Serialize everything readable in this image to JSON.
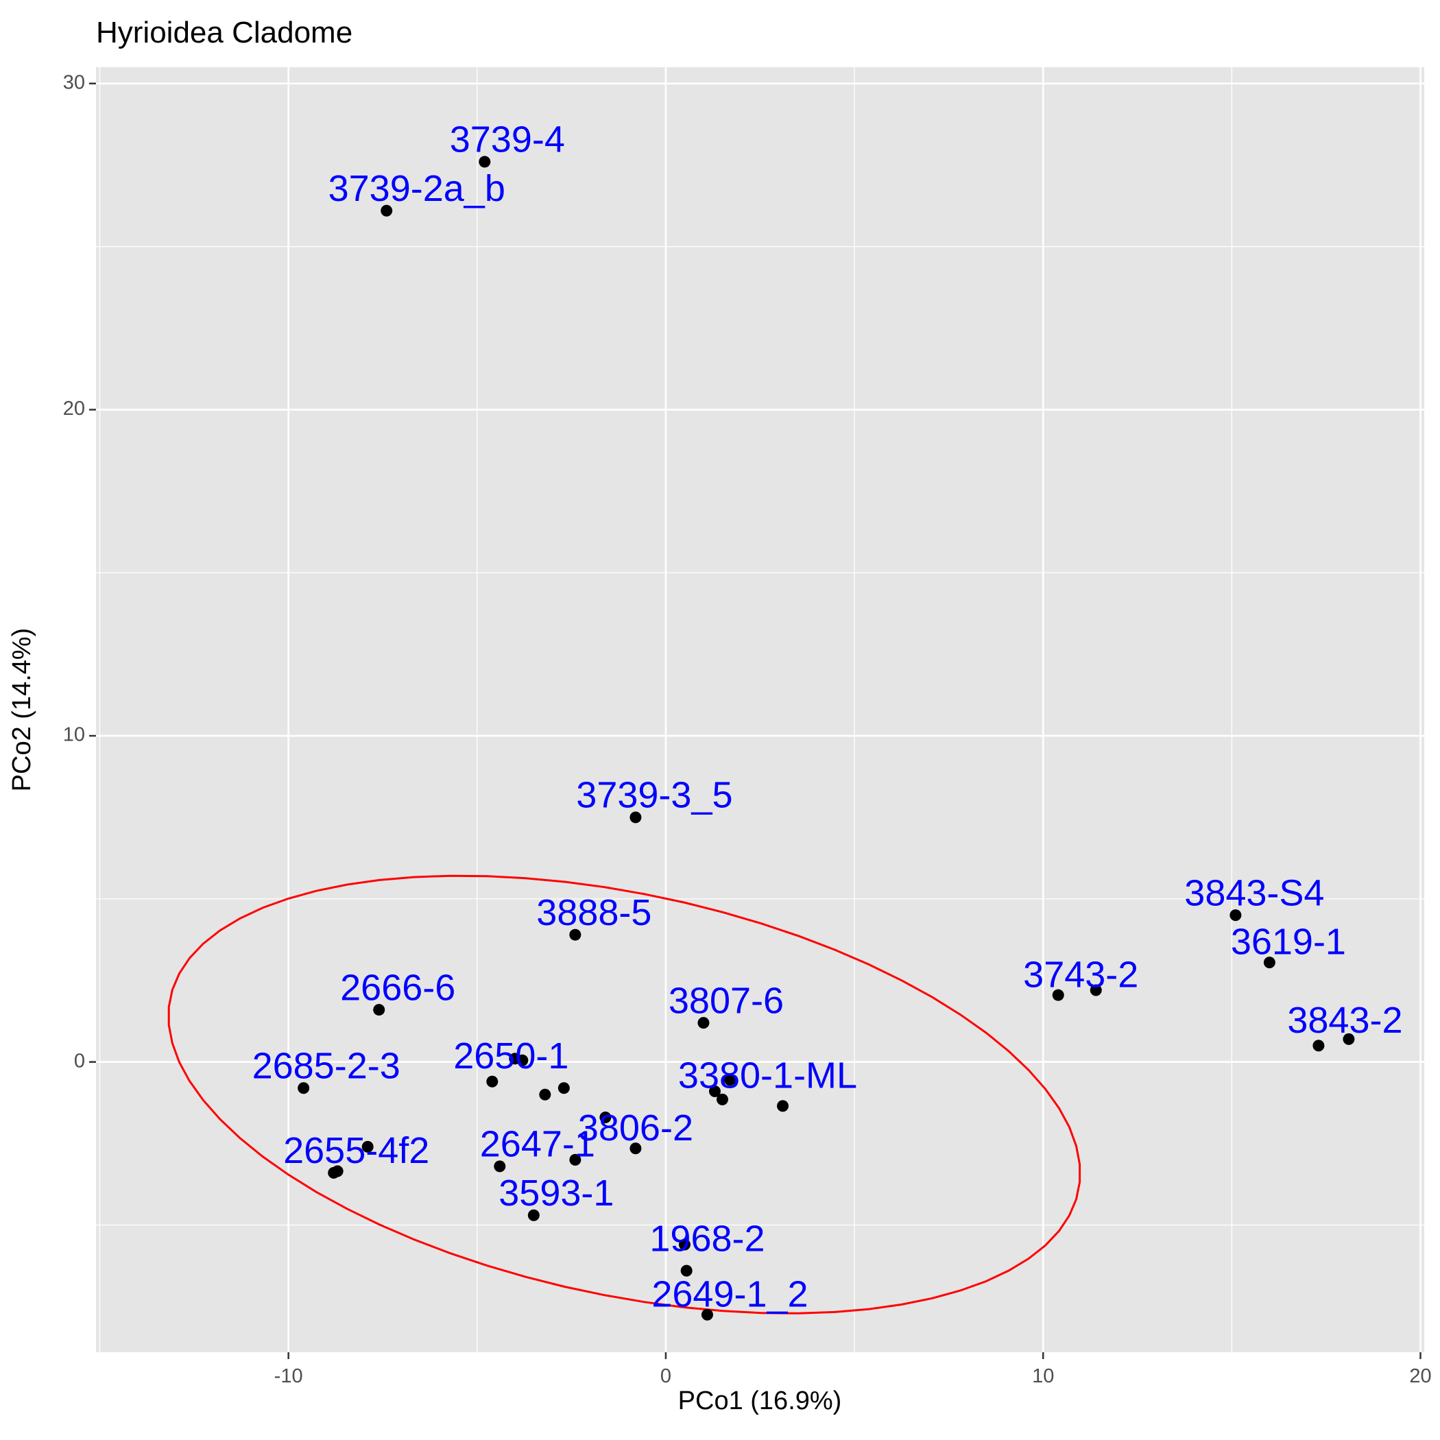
{
  "chart_data": {
    "type": "scatter",
    "title": "Hyrioidea Cladome",
    "xlabel": "PCo1 (16.9%)",
    "ylabel": "PCo2 (14.4%)",
    "xlim": [
      -15.1,
      20.1
    ],
    "ylim": [
      -8.9,
      30.5
    ],
    "x_ticks": [
      -10,
      0,
      10,
      20
    ],
    "x_tick_labels": [
      "-10",
      "0",
      "10",
      "20"
    ],
    "y_ticks": [
      0,
      10,
      20,
      30
    ],
    "y_tick_labels": [
      "0",
      "10",
      "20",
      "30"
    ],
    "grid": true,
    "colors": {
      "panel": "#e5e5e5",
      "grid": "#ffffff",
      "points": "#000000",
      "labels": "#0000ff",
      "ellipse": "#ff0000"
    },
    "points": [
      {
        "x": -4.8,
        "y": 27.6
      },
      {
        "x": -7.4,
        "y": 26.1
      },
      {
        "x": -0.8,
        "y": 7.5
      },
      {
        "x": -2.4,
        "y": 3.9
      },
      {
        "x": -7.6,
        "y": 1.6
      },
      {
        "x": 1.0,
        "y": 1.2
      },
      {
        "x": -9.6,
        "y": -0.8
      },
      {
        "x": -4.0,
        "y": 0.1
      },
      {
        "x": -3.8,
        "y": 0.05
      },
      {
        "x": -4.6,
        "y": -0.6
      },
      {
        "x": -3.2,
        "y": -1.0
      },
      {
        "x": -2.7,
        "y": -0.8
      },
      {
        "x": 1.3,
        "y": -0.9
      },
      {
        "x": 1.5,
        "y": -1.15
      },
      {
        "x": 1.7,
        "y": -0.55
      },
      {
        "x": 3.1,
        "y": -1.35
      },
      {
        "x": -1.6,
        "y": -1.7
      },
      {
        "x": -0.8,
        "y": -2.65
      },
      {
        "x": -7.9,
        "y": -2.6
      },
      {
        "x": -8.8,
        "y": -3.4
      },
      {
        "x": -8.7,
        "y": -3.35
      },
      {
        "x": -4.4,
        "y": -3.2
      },
      {
        "x": -2.4,
        "y": -3.0
      },
      {
        "x": -3.5,
        "y": -4.7
      },
      {
        "x": 0.5,
        "y": -5.6
      },
      {
        "x": 0.55,
        "y": -6.4
      },
      {
        "x": 1.1,
        "y": -7.75
      },
      {
        "x": 10.4,
        "y": 2.05
      },
      {
        "x": 11.4,
        "y": 2.2
      },
      {
        "x": 15.1,
        "y": 4.5
      },
      {
        "x": 16.0,
        "y": 3.05
      },
      {
        "x": 17.3,
        "y": 0.5
      },
      {
        "x": 18.1,
        "y": 0.7
      }
    ],
    "labels": [
      {
        "text": "3739-4",
        "x": -4.2,
        "y": 28.2
      },
      {
        "text": "3739-2a_b",
        "x": -6.6,
        "y": 26.7
      },
      {
        "text": "3739-3_5",
        "x": -0.3,
        "y": 8.1
      },
      {
        "text": "3888-5",
        "x": -1.9,
        "y": 4.5
      },
      {
        "text": "2666-6",
        "x": -7.1,
        "y": 2.2
      },
      {
        "text": "3807-6",
        "x": 1.6,
        "y": 1.8
      },
      {
        "text": "2685-2-3",
        "x": -9.0,
        "y": -0.2
      },
      {
        "text": "2650-1",
        "x": -4.1,
        "y": 0.1
      },
      {
        "text": "3380-1-ML",
        "x": 2.7,
        "y": -0.5
      },
      {
        "text": "3806-2",
        "x": -0.8,
        "y": -2.1
      },
      {
        "text": "2647-1",
        "x": -3.4,
        "y": -2.6
      },
      {
        "text": "2655-4f2",
        "x": -8.2,
        "y": -2.8
      },
      {
        "text": "3593-1",
        "x": -2.9,
        "y": -4.1
      },
      {
        "text": "1968-2",
        "x": 1.1,
        "y": -5.5
      },
      {
        "text": "2649-1_2",
        "x": 1.7,
        "y": -7.2
      },
      {
        "text": "3743-2",
        "x": 11.0,
        "y": 2.6
      },
      {
        "text": "3843-S4",
        "x": 15.6,
        "y": 5.1
      },
      {
        "text": "3619-1",
        "x": 16.5,
        "y": 3.6
      },
      {
        "text": "3843-2",
        "x": 18.0,
        "y": 1.2
      }
    ],
    "ellipse": {
      "cx": -1.1,
      "cy": -1.0,
      "rx": 12.4,
      "ry": 6.1,
      "angle_deg": -15
    }
  }
}
